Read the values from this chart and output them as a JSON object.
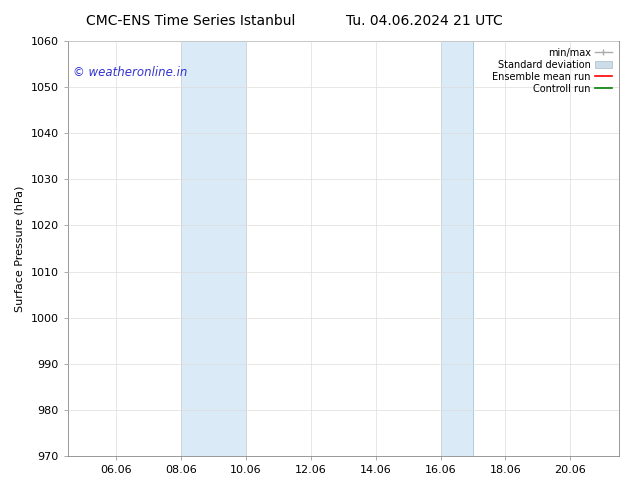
{
  "title_left": "CMC-ENS Time Series Istanbul",
  "title_right": "Tu. 04.06.2024 21 UTC",
  "ylabel": "Surface Pressure (hPa)",
  "ylim": [
    970,
    1060
  ],
  "yticks": [
    970,
    980,
    990,
    1000,
    1010,
    1020,
    1030,
    1040,
    1050,
    1060
  ],
  "xlim_start": 4.5,
  "xlim_end": 21.5,
  "xtick_labels": [
    "06.06",
    "08.06",
    "10.06",
    "12.06",
    "14.06",
    "16.06",
    "18.06",
    "20.06"
  ],
  "xtick_positions": [
    6.0,
    8.0,
    10.0,
    12.0,
    14.0,
    16.0,
    18.0,
    20.0
  ],
  "shaded_bands": [
    {
      "xmin": 8.0,
      "xmax": 10.0
    },
    {
      "xmin": 16.0,
      "xmax": 17.0
    }
  ],
  "shade_color": "#daeaf7",
  "shade_edge_color": "#aacce0",
  "watermark_text": "© weatheronline.in",
  "watermark_color": "#3333cc",
  "watermark_fontsize": 8.5,
  "legend_entries": [
    {
      "label": "min/max",
      "color": "#aaaaaa",
      "linewidth": 1.0,
      "style": "minmax"
    },
    {
      "label": "Standard deviation",
      "color": "#ccdde8",
      "linewidth": 8,
      "style": "bar"
    },
    {
      "label": "Ensemble mean run",
      "color": "red",
      "linewidth": 1.2,
      "style": "line"
    },
    {
      "label": "Controll run",
      "color": "green",
      "linewidth": 1.2,
      "style": "line"
    }
  ],
  "bg_color": "#ffffff",
  "grid_color": "#dddddd",
  "title_fontsize": 10,
  "axis_fontsize": 8,
  "tick_fontsize": 8
}
